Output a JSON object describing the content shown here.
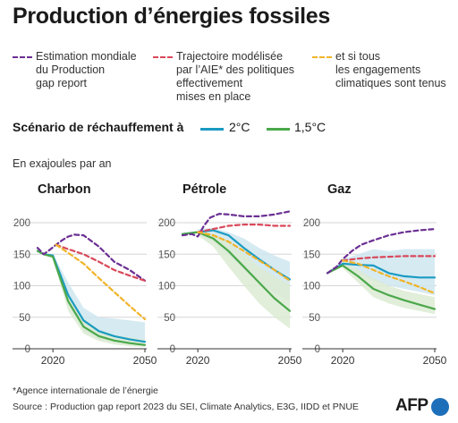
{
  "title": "Production d’énergies fossiles",
  "legend": [
    {
      "label": "Estimation mondiale\ndu Production\ngap report",
      "color": "#6b2f93"
    },
    {
      "label": "Trajectoire modélisée\npar l’AIE* des politiques\neffectivement\nmises en place",
      "color": "#d9485a"
    },
    {
      "label": "et si tous\nles engagements\nclimatiques sont tenus",
      "color": "#f0b429"
    }
  ],
  "scenario": {
    "label": "Scénario de réchauffement à",
    "items": [
      {
        "label": "2°C",
        "color": "#1a9bc2"
      },
      {
        "label": "1,5°C",
        "color": "#4aa84a"
      }
    ]
  },
  "unit": "En exajoules par an",
  "footnote": "*Agence internationale de l’énergie",
  "source": "Source : Production gap report 2023 du SEI, Climate Analytics, E3G, IIDD et PNUE",
  "logo": "AFP",
  "colors": {
    "production_gap": "#6b2f93",
    "aie_policies": "#d9485a",
    "aie_pledges": "#f0b429",
    "c2": "#1a9bc2",
    "c15": "#4aa84a",
    "band2": "#cfe6f0",
    "band15": "#dcebd3"
  },
  "chart_data": [
    {
      "type": "line",
      "title": "Charbon",
      "xlim": [
        2015,
        2050
      ],
      "ylim": [
        0,
        200
      ],
      "xticks": [
        2020,
        2050
      ],
      "yticks": [
        0,
        50,
        100,
        150,
        200
      ],
      "grid": true,
      "series": [
        {
          "name": "Estimation mondiale du Production gap report",
          "style": "dashed",
          "color": "#6b2f93",
          "x": [
            2015,
            2017,
            2019,
            2021,
            2023,
            2025,
            2027,
            2030,
            2035,
            2040,
            2045,
            2050
          ],
          "y": [
            160,
            150,
            157,
            165,
            172,
            178,
            181,
            180,
            162,
            138,
            125,
            108
          ]
        },
        {
          "name": "Trajectoire modélisée par l’AIE* des politiques effectivement mises en place",
          "style": "dashed",
          "color": "#d9485a",
          "x": [
            2021,
            2025,
            2030,
            2035,
            2040,
            2045,
            2050
          ],
          "y": [
            165,
            158,
            150,
            138,
            125,
            116,
            108
          ]
        },
        {
          "name": "et si tous les engagements climatiques sont tenus",
          "style": "dashed",
          "color": "#f0b429",
          "x": [
            2021,
            2025,
            2030,
            2035,
            2040,
            2045,
            2050
          ],
          "y": [
            165,
            152,
            135,
            112,
            90,
            68,
            47
          ]
        },
        {
          "name": "2°C",
          "style": "solid",
          "color": "#1a9bc2",
          "x": [
            2015,
            2017,
            2020,
            2025,
            2030,
            2035,
            2040,
            2045,
            2050
          ],
          "y": [
            155,
            150,
            148,
            85,
            45,
            28,
            20,
            15,
            11
          ]
        },
        {
          "name": "1,5°C",
          "style": "solid",
          "color": "#4aa84a",
          "x": [
            2015,
            2017,
            2020,
            2025,
            2030,
            2035,
            2040,
            2045,
            2050
          ],
          "y": [
            155,
            150,
            146,
            75,
            35,
            20,
            13,
            9,
            6
          ]
        }
      ],
      "bands": [
        {
          "color": "#cfe6f0",
          "x": [
            2020,
            2025,
            2030,
            2035,
            2040,
            2045,
            2050
          ],
          "upper": [
            150,
            105,
            65,
            50,
            48,
            45,
            42
          ],
          "lower": [
            145,
            70,
            28,
            15,
            10,
            7,
            5
          ]
        },
        {
          "color": "#dcebd3",
          "x": [
            2020,
            2025,
            2030,
            2035,
            2040,
            2045,
            2050
          ],
          "upper": [
            148,
            88,
            48,
            30,
            22,
            18,
            15
          ],
          "lower": [
            142,
            60,
            24,
            12,
            7,
            4,
            3
          ]
        }
      ]
    },
    {
      "type": "line",
      "title": "Pétrole",
      "xlim": [
        2015,
        2050
      ],
      "ylim": [
        0,
        200
      ],
      "xticks": [
        2020,
        2050
      ],
      "yticks": [
        0,
        50,
        100,
        150,
        200
      ],
      "grid": true,
      "series": [
        {
          "name": "Estimation mondiale du Production gap report",
          "style": "dashed",
          "color": "#6b2f93",
          "x": [
            2015,
            2018,
            2020,
            2022,
            2024,
            2027,
            2030,
            2035,
            2040,
            2045,
            2050
          ],
          "y": [
            180,
            182,
            178,
            195,
            208,
            214,
            213,
            210,
            210,
            213,
            218
          ]
        },
        {
          "name": "Trajectoire modélisée par l’AIE* des politiques effectivement mises en place",
          "style": "dashed",
          "color": "#d9485a",
          "x": [
            2020,
            2025,
            2030,
            2035,
            2040,
            2045,
            2050
          ],
          "y": [
            185,
            190,
            195,
            197,
            197,
            195,
            195
          ]
        },
        {
          "name": "et si tous les engagements climatiques sont tenus",
          "style": "dashed",
          "color": "#f0b429",
          "x": [
            2020,
            2025,
            2030,
            2035,
            2040,
            2045,
            2050
          ],
          "y": [
            185,
            180,
            170,
            155,
            140,
            125,
            108
          ]
        },
        {
          "name": "2°C",
          "style": "solid",
          "color": "#1a9bc2",
          "x": [
            2015,
            2020,
            2025,
            2030,
            2035,
            2040,
            2045,
            2050
          ],
          "y": [
            182,
            185,
            188,
            180,
            160,
            142,
            125,
            110
          ]
        },
        {
          "name": "1,5°C",
          "style": "solid",
          "color": "#4aa84a",
          "x": [
            2015,
            2020,
            2025,
            2030,
            2035,
            2040,
            2045,
            2050
          ],
          "y": [
            182,
            185,
            175,
            155,
            130,
            105,
            80,
            60
          ]
        }
      ],
      "bands": [
        {
          "color": "#cfe6f0",
          "x": [
            2020,
            2025,
            2030,
            2035,
            2040,
            2045,
            2050
          ],
          "upper": [
            190,
            192,
            185,
            175,
            160,
            148,
            138
          ],
          "lower": [
            180,
            170,
            148,
            125,
            105,
            88,
            75
          ]
        },
        {
          "color": "#dcebd3",
          "x": [
            2020,
            2025,
            2030,
            2035,
            2040,
            2045,
            2050
          ],
          "upper": [
            188,
            182,
            168,
            150,
            130,
            115,
            102
          ],
          "lower": [
            180,
            162,
            130,
            100,
            72,
            50,
            32
          ]
        }
      ]
    },
    {
      "type": "line",
      "title": "Gaz",
      "xlim": [
        2015,
        2050
      ],
      "ylim": [
        0,
        200
      ],
      "xticks": [
        2020,
        2050
      ],
      "yticks": [
        0,
        50,
        100,
        150,
        200
      ],
      "grid": true,
      "series": [
        {
          "name": "Estimation mondiale du Production gap report",
          "style": "dashed",
          "color": "#6b2f93",
          "x": [
            2015,
            2018,
            2020,
            2023,
            2026,
            2030,
            2035,
            2040,
            2045,
            2050
          ],
          "y": [
            120,
            130,
            142,
            155,
            165,
            172,
            180,
            185,
            188,
            190
          ]
        },
        {
          "name": "Trajectoire modélisée par l’AIE* des politiques effectivement mises en place",
          "style": "dashed",
          "color": "#d9485a",
          "x": [
            2020,
            2025,
            2030,
            2035,
            2040,
            2045,
            2050
          ],
          "y": [
            140,
            143,
            145,
            146,
            147,
            147,
            147
          ]
        },
        {
          "name": "et si tous les engagements climatiques sont tenus",
          "style": "dashed",
          "color": "#f0b429",
          "x": [
            2020,
            2025,
            2030,
            2035,
            2040,
            2045,
            2050
          ],
          "y": [
            140,
            135,
            125,
            115,
            107,
            98,
            88
          ]
        },
        {
          "name": "2°C",
          "style": "solid",
          "color": "#1a9bc2",
          "x": [
            2015,
            2020,
            2025,
            2030,
            2035,
            2040,
            2045,
            2050
          ],
          "y": [
            120,
            135,
            133,
            132,
            120,
            115,
            113,
            113
          ]
        },
        {
          "name": "1,5°C",
          "style": "solid",
          "color": "#4aa84a",
          "x": [
            2015,
            2020,
            2025,
            2030,
            2035,
            2040,
            2045,
            2050
          ],
          "y": [
            120,
            132,
            115,
            95,
            85,
            77,
            70,
            63
          ]
        }
      ],
      "bands": [
        {
          "color": "#cfe6f0",
          "x": [
            2020,
            2025,
            2030,
            2035,
            2040,
            2045,
            2050
          ],
          "upper": [
            142,
            150,
            158,
            155,
            158,
            158,
            158
          ],
          "lower": [
            130,
            118,
            108,
            100,
            95,
            90,
            85
          ]
        },
        {
          "color": "#dcebd3",
          "x": [
            2020,
            2025,
            2030,
            2035,
            2040,
            2045,
            2050
          ],
          "upper": [
            138,
            125,
            112,
            100,
            92,
            87,
            82
          ],
          "lower": [
            128,
            105,
            82,
            72,
            65,
            60,
            55
          ]
        }
      ]
    }
  ]
}
